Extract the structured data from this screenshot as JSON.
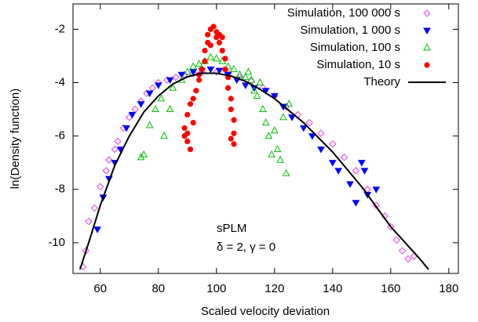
{
  "chart_data": {
    "type": "scatter",
    "xlabel": "Scaled velocity deviation",
    "ylabel": "ln(Density function)",
    "xlim": [
      50.6,
      183.3
    ],
    "ylim": [
      -11.15,
      -1.05
    ],
    "xticks": [
      60,
      80,
      100,
      120,
      140,
      160,
      180
    ],
    "yticks": [
      -2,
      -4,
      -6,
      -8,
      -10
    ],
    "legend": "upper right",
    "grid": false,
    "annotations": [
      "sPLM",
      "δ = 2, γ = 0"
    ],
    "series": [
      {
        "name": "Simulation, 100 000 s",
        "color": "#e040e0",
        "marker": "diamond-open",
        "x": [
          54,
          55,
          56,
          58,
          60,
          62,
          63,
          65,
          66,
          68,
          70,
          72,
          74,
          76,
          78,
          80,
          83,
          86,
          89,
          92,
          95,
          100,
          104,
          108,
          112,
          116,
          120,
          124,
          128,
          132,
          136,
          140,
          144,
          148,
          152,
          155,
          158,
          160,
          162,
          164,
          166,
          168
        ],
        "values": [
          -10.9,
          -10.3,
          -9.2,
          -8.7,
          -7.9,
          -7.3,
          -6.9,
          -6.5,
          -6.2,
          -5.7,
          -5.3,
          -5.0,
          -4.7,
          -4.4,
          -4.2,
          -4.0,
          -3.9,
          -3.8,
          -3.7,
          -3.65,
          -3.6,
          -3.6,
          -3.65,
          -3.8,
          -3.95,
          -4.2,
          -4.5,
          -4.9,
          -5.2,
          -5.5,
          -5.9,
          -6.3,
          -6.8,
          -7.3,
          -8.0,
          -8.6,
          -9.0,
          -9.4,
          -9.9,
          -10.3,
          -10.6,
          -10.5
        ]
      },
      {
        "name": "Simulation, 1 000 s",
        "color": "#0000ff",
        "marker": "triangle-down",
        "x": [
          59,
          61,
          63,
          65,
          67,
          69,
          71,
          74,
          77,
          80,
          84,
          88,
          92,
          95,
          98,
          101,
          104,
          107,
          110,
          113,
          117,
          120,
          123,
          126,
          130,
          133,
          136,
          140,
          142,
          146,
          148,
          150,
          151,
          152,
          155
        ],
        "values": [
          -9.5,
          -8.3,
          -7.6,
          -7.0,
          -6.5,
          -5.7,
          -5.2,
          -4.8,
          -4.4,
          -4.1,
          -3.9,
          -3.7,
          -3.6,
          -3.55,
          -3.5,
          -3.55,
          -3.7,
          -3.9,
          -4.1,
          -4.2,
          -4.3,
          -4.5,
          -4.9,
          -5.3,
          -5.7,
          -6.0,
          -6.5,
          -7.0,
          -7.3,
          -7.8,
          -8.5,
          -7.0,
          -7.3,
          -8.2,
          -8.0
        ]
      },
      {
        "name": "Simulation, 100 s",
        "color": "#00c000",
        "marker": "triangle-up-open",
        "x": [
          74,
          75,
          77,
          79,
          81,
          82,
          84,
          85,
          88,
          90,
          92,
          94,
          96,
          98,
          100,
          102,
          104,
          106,
          108,
          110,
          111,
          112,
          113,
          114,
          115,
          116,
          117,
          118,
          119,
          120,
          121,
          122,
          123,
          124,
          125
        ],
        "values": [
          -6.8,
          -6.7,
          -5.6,
          -5.0,
          -4.6,
          -6.0,
          -5.0,
          -4.2,
          -3.9,
          -3.6,
          -3.4,
          -3.3,
          -3.2,
          -3.05,
          -3.1,
          -3.2,
          -3.4,
          -3.5,
          -3.7,
          -3.8,
          -3.6,
          -3.9,
          -4.3,
          -4.5,
          -4.0,
          -5.0,
          -5.5,
          -6.0,
          -6.7,
          -5.8,
          -6.5,
          -6.9,
          -5.3,
          -7.4,
          -4.8
        ]
      },
      {
        "name": "Simulation, 10 s",
        "color": "#ff0000",
        "marker": "circle",
        "x": [
          89,
          89,
          90,
          90,
          90,
          91,
          91,
          92,
          92,
          93,
          94,
          94,
          95,
          96,
          96,
          97,
          97,
          98,
          98,
          99,
          100,
          100,
          101,
          101,
          102,
          102,
          103,
          103,
          104,
          104,
          105,
          105,
          105,
          106,
          106,
          106
        ],
        "values": [
          -6.0,
          -5.7,
          -6.2,
          -5.2,
          -5.9,
          -4.8,
          -6.5,
          -4.6,
          -5.5,
          -4.3,
          -3.9,
          -3.7,
          -3.5,
          -3.2,
          -2.8,
          -2.5,
          -2.2,
          -2.0,
          -2.6,
          -1.9,
          -2.1,
          -2.3,
          -2.2,
          -2.5,
          -2.3,
          -2.8,
          -3.1,
          -3.5,
          -3.8,
          -4.2,
          -4.6,
          -5.0,
          -6.1,
          -5.4,
          -5.9,
          -6.3
        ]
      },
      {
        "name": "Theory",
        "color": "#000000",
        "marker": "line",
        "x": [
          53,
          56,
          60,
          65,
          70,
          75,
          80,
          85,
          90,
          95,
          100,
          105,
          110,
          115,
          120,
          130,
          140,
          150,
          160,
          170,
          173
        ],
        "values": [
          -11.0,
          -10.0,
          -8.6,
          -7.1,
          -6.0,
          -5.1,
          -4.5,
          -4.05,
          -3.78,
          -3.65,
          -3.65,
          -3.75,
          -3.95,
          -4.25,
          -4.6,
          -5.5,
          -6.6,
          -7.9,
          -9.4,
          -10.6,
          -11.0
        ]
      }
    ]
  }
}
